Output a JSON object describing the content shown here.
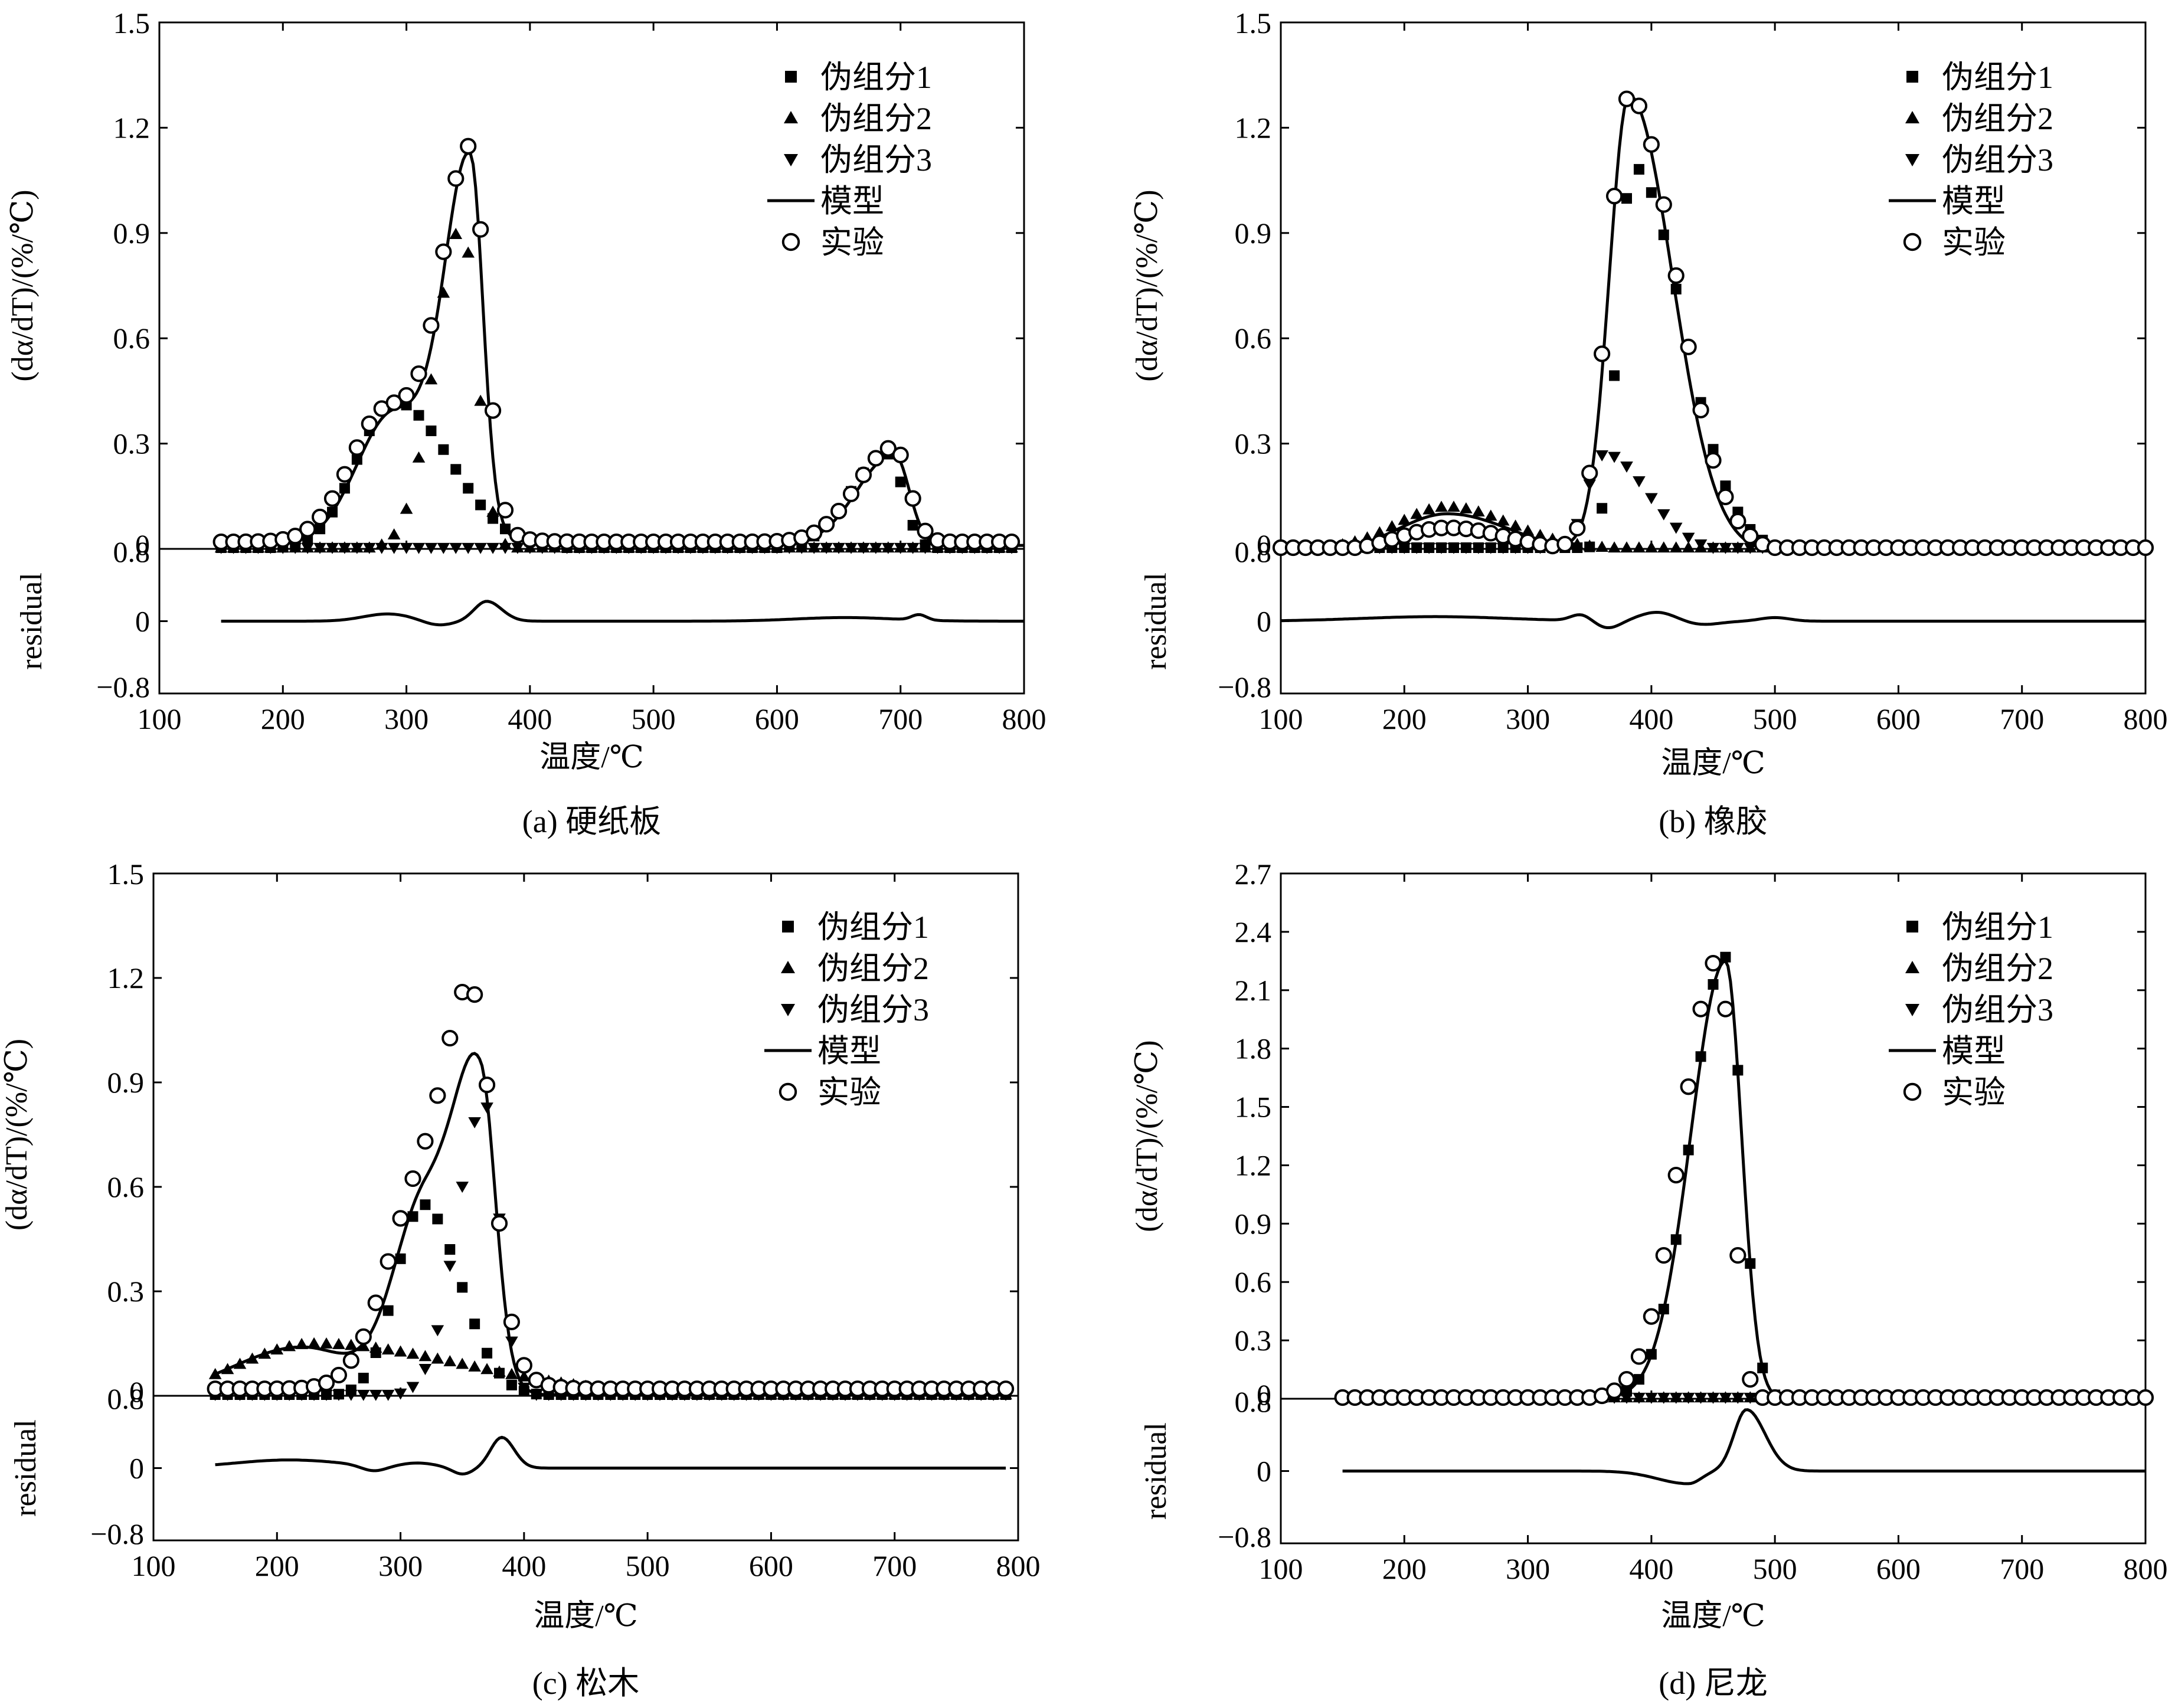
{
  "figure": {
    "panels": [
      {
        "caption": "(a) 硬纸板",
        "chart_data": {
          "type": "line",
          "xlabel": "温度/℃",
          "ylabel_main": "(dα/dT)/(%/℃)",
          "ylabel_residual": "residual",
          "xlim": [
            100,
            800
          ],
          "xticks": [
            "100",
            "200",
            "300",
            "400",
            "500",
            "600",
            "700",
            "800"
          ],
          "main_ylim": [
            0,
            1.5
          ],
          "main_yticks": [
            "0",
            "0.3",
            "0.6",
            "0.9",
            "1.2",
            "1.5"
          ],
          "residual_ylim": [
            -0.8,
            0.8
          ],
          "residual_yticks": [
            "0.8",
            "0",
            "−0.8"
          ],
          "legend_placement": "top-right",
          "series": [
            {
              "name": "伪组分1",
              "marker": "square",
              "peaks": [
                [
                  290,
                  0.42,
                  30,
                  45
                ],
                [
                  690,
                  0.27,
                  30,
                  12
                ]
              ],
              "xrange": [
                150,
                790
              ]
            },
            {
              "name": "伪组分2",
              "marker": "triangle-up",
              "peaks": [
                [
                  345,
                  0.92,
                  22,
                  12
                ]
              ],
              "xrange": [
                150,
                790
              ]
            },
            {
              "name": "伪组分3",
              "marker": "triangle-down",
              "peaks": [],
              "xrange": [
                150,
                790
              ]
            },
            {
              "name": "模型",
              "marker": "line",
              "peaks": [
                [
                  290,
                  0.38,
                  30,
                  40
                ],
                [
                  352,
                  1.0,
                  20,
                  10
                ],
                [
                  695,
                  0.26,
                  30,
                  12
                ]
              ],
              "baseline": 0.01,
              "xrange": [
                150,
                800
              ]
            },
            {
              "name": "实验",
              "marker": "circle",
              "peaks": [
                [
                  285,
                  0.38,
                  30,
                  40
                ],
                [
                  352,
                  1.03,
                  22,
                  12
                ],
                [
                  695,
                  0.27,
                  30,
                  12
                ]
              ],
              "baseline": 0.02,
              "xrange": [
                150,
                790
              ]
            }
          ],
          "residual": {
            "xrange": [
              150,
              800
            ],
            "peaks": [
              [
                285,
                0.08,
                20,
                20
              ],
              [
                325,
                -0.05,
                12,
                12
              ],
              [
                365,
                0.22,
                10,
                12
              ],
              [
                655,
                0.04,
                40,
                40
              ],
              [
                715,
                0.06,
                6,
                6
              ]
            ]
          }
        }
      },
      {
        "caption": "(b) 橡胶",
        "chart_data": {
          "type": "line",
          "xlabel": "温度/℃",
          "ylabel_main": "(dα/dT)/(%/℃)",
          "ylabel_residual": "residual",
          "xlim": [
            100,
            800
          ],
          "xticks": [
            "100",
            "200",
            "300",
            "400",
            "500",
            "600",
            "700",
            "800"
          ],
          "main_ylim": [
            0,
            1.5
          ],
          "main_yticks": [
            "0",
            "0.3",
            "0.6",
            "0.9",
            "1.2",
            "1.5"
          ],
          "residual_ylim": [
            -0.8,
            0.8
          ],
          "residual_yticks": [
            "0.8",
            "0",
            "−0.8"
          ],
          "legend_placement": "top-right",
          "series": [
            {
              "name": "伪组分1",
              "marker": "square",
              "peaks": [
                [
                  385,
                  1.1,
                  12,
                  40
                ]
              ],
              "baseline": -0.01,
              "xrange": [
                100,
                800
              ]
            },
            {
              "name": "伪组分2",
              "marker": "triangle-up",
              "peaks": [
                [
                  235,
                  0.12,
                  40,
                  50
                ]
              ],
              "xrange": [
                100,
                800
              ]
            },
            {
              "name": "伪组分3",
              "marker": "triangle-down",
              "peaks": [
                [
                  362,
                  0.28,
                  14,
                  35
                ]
              ],
              "baseline": -0.01,
              "xrange": [
                100,
                800
              ]
            },
            {
              "name": "模型",
              "marker": "line",
              "peaks": [
                [
                  235,
                  0.11,
                  40,
                  50
                ],
                [
                  382,
                  1.3,
                  16,
                  35
                ]
              ],
              "baseline": -0.01,
              "xrange": [
                100,
                800
              ]
            },
            {
              "name": "实验",
              "marker": "circle",
              "peaks": [
                [
                  235,
                  0.07,
                  40,
                  50
                ],
                [
                  382,
                  1.3,
                  17,
                  38
                ]
              ],
              "baseline": -0.01,
              "xrange": [
                100,
                800
              ]
            }
          ],
          "residual": {
            "xrange": [
              100,
              800
            ],
            "peaks": [
              [
                225,
                0.05,
                60,
                60
              ],
              [
                343,
                0.07,
                8,
                8
              ],
              [
                365,
                -0.08,
                10,
                10
              ],
              [
                405,
                0.1,
                15,
                15
              ],
              [
                440,
                -0.04,
                15,
                15
              ],
              [
                500,
                0.04,
                12,
                12
              ]
            ]
          }
        }
      },
      {
        "caption": "(c) 松木",
        "chart_data": {
          "type": "line",
          "xlabel": "温度/℃",
          "ylabel_main": "(dα/dT)/(%/℃)",
          "ylabel_residual": "residual",
          "xlim": [
            100,
            800
          ],
          "xticks": [
            "100",
            "200",
            "300",
            "400",
            "500",
            "600",
            "700",
            "800"
          ],
          "main_ylim": [
            0,
            1.5
          ],
          "main_yticks": [
            "0",
            "0.3",
            "0.6",
            "0.9",
            "1.2",
            "1.5"
          ],
          "residual_ylim": [
            -0.8,
            0.8
          ],
          "residual_yticks": [
            "0.8",
            "0",
            "−0.8"
          ],
          "legend_placement": "top-right",
          "series": [
            {
              "name": "伪组分1",
              "marker": "square",
              "peaks": [
                [
                  318,
                  0.55,
                  22,
                  30
                ]
              ],
              "xrange": [
                150,
                790
              ]
            },
            {
              "name": "伪组分2",
              "marker": "triangle-up",
              "peaks": [
                [
                  230,
                  0.15,
                  60,
                  120
                ]
              ],
              "xrange": [
                150,
                790
              ]
            },
            {
              "name": "伪组分3",
              "marker": "triangle-down",
              "peaks": [
                [
                  368,
                  0.84,
                  22,
                  12
                ]
              ],
              "xrange": [
                150,
                790
              ]
            },
            {
              "name": "模型",
              "marker": "line",
              "peaks": [
                [
                  220,
                  0.14,
                  55,
                  45
                ],
                [
                  320,
                  0.55,
                  25,
                  30
                ],
                [
                  365,
                  0.78,
                  20,
                  12
                ]
              ],
              "xrange": [
                150,
                790
              ]
            },
            {
              "name": "实验",
              "marker": "circle",
              "peaks": [
                [
                  320,
                  0.6,
                  30,
                  35
                ],
                [
                  360,
                  0.82,
                  20,
                  15
                ]
              ],
              "baseline": 0.02,
              "xrange": [
                150,
                790
              ]
            }
          ],
          "residual": {
            "xrange": [
              150,
              790
            ],
            "peaks": [
              [
                210,
                0.09,
                45,
                45
              ],
              [
                278,
                -0.06,
                10,
                10
              ],
              [
                315,
                0.05,
                15,
                15
              ],
              [
                350,
                -0.07,
                8,
                8
              ],
              [
                382,
                0.34,
                9,
                10
              ]
            ]
          }
        }
      },
      {
        "caption": "(d) 尼龙",
        "chart_data": {
          "type": "line",
          "xlabel": "温度/℃",
          "ylabel_main": "(dα/dT)/(%/℃)",
          "ylabel_residual": "residual",
          "xlim": [
            100,
            800
          ],
          "xticks": [
            "100",
            "200",
            "300",
            "400",
            "500",
            "600",
            "700",
            "800"
          ],
          "main_ylim": [
            0,
            2.7
          ],
          "main_yticks": [
            "0",
            "0.3",
            "0.6",
            "0.9",
            "1.2",
            "1.5",
            "1.8",
            "2.1",
            "2.4",
            "2.7"
          ],
          "residual_ylim": [
            -0.8,
            0.8
          ],
          "residual_yticks": [
            "0.8",
            "0",
            "−0.8"
          ],
          "legend_placement": "top-right",
          "series": [
            {
              "name": "伪组分1",
              "marker": "square",
              "peaks": [
                [
                  460,
                  2.27,
                  28,
                  13
                ]
              ],
              "xrange": [
                150,
                800
              ]
            },
            {
              "name": "伪组分2",
              "marker": "triangle-up",
              "peaks": [],
              "xrange": [
                150,
                800
              ]
            },
            {
              "name": "伪组分3",
              "marker": "triangle-down",
              "peaks": [],
              "xrange": [
                150,
                800
              ]
            },
            {
              "name": "模型",
              "marker": "line",
              "peaks": [
                [
                  460,
                  2.25,
                  28,
                  13
                ]
              ],
              "xrange": [
                150,
                800
              ]
            },
            {
              "name": "实验",
              "marker": "circle",
              "peaks": [
                [
                  455,
                  2.27,
                  30,
                  10
                ]
              ],
              "xrange": [
                150,
                800
              ]
            }
          ],
          "residual": {
            "xrange": [
              150,
              800
            ],
            "peaks": [
              [
                430,
                -0.14,
                25,
                10
              ],
              [
                477,
                0.68,
                10,
                15
              ]
            ]
          }
        }
      }
    ]
  }
}
